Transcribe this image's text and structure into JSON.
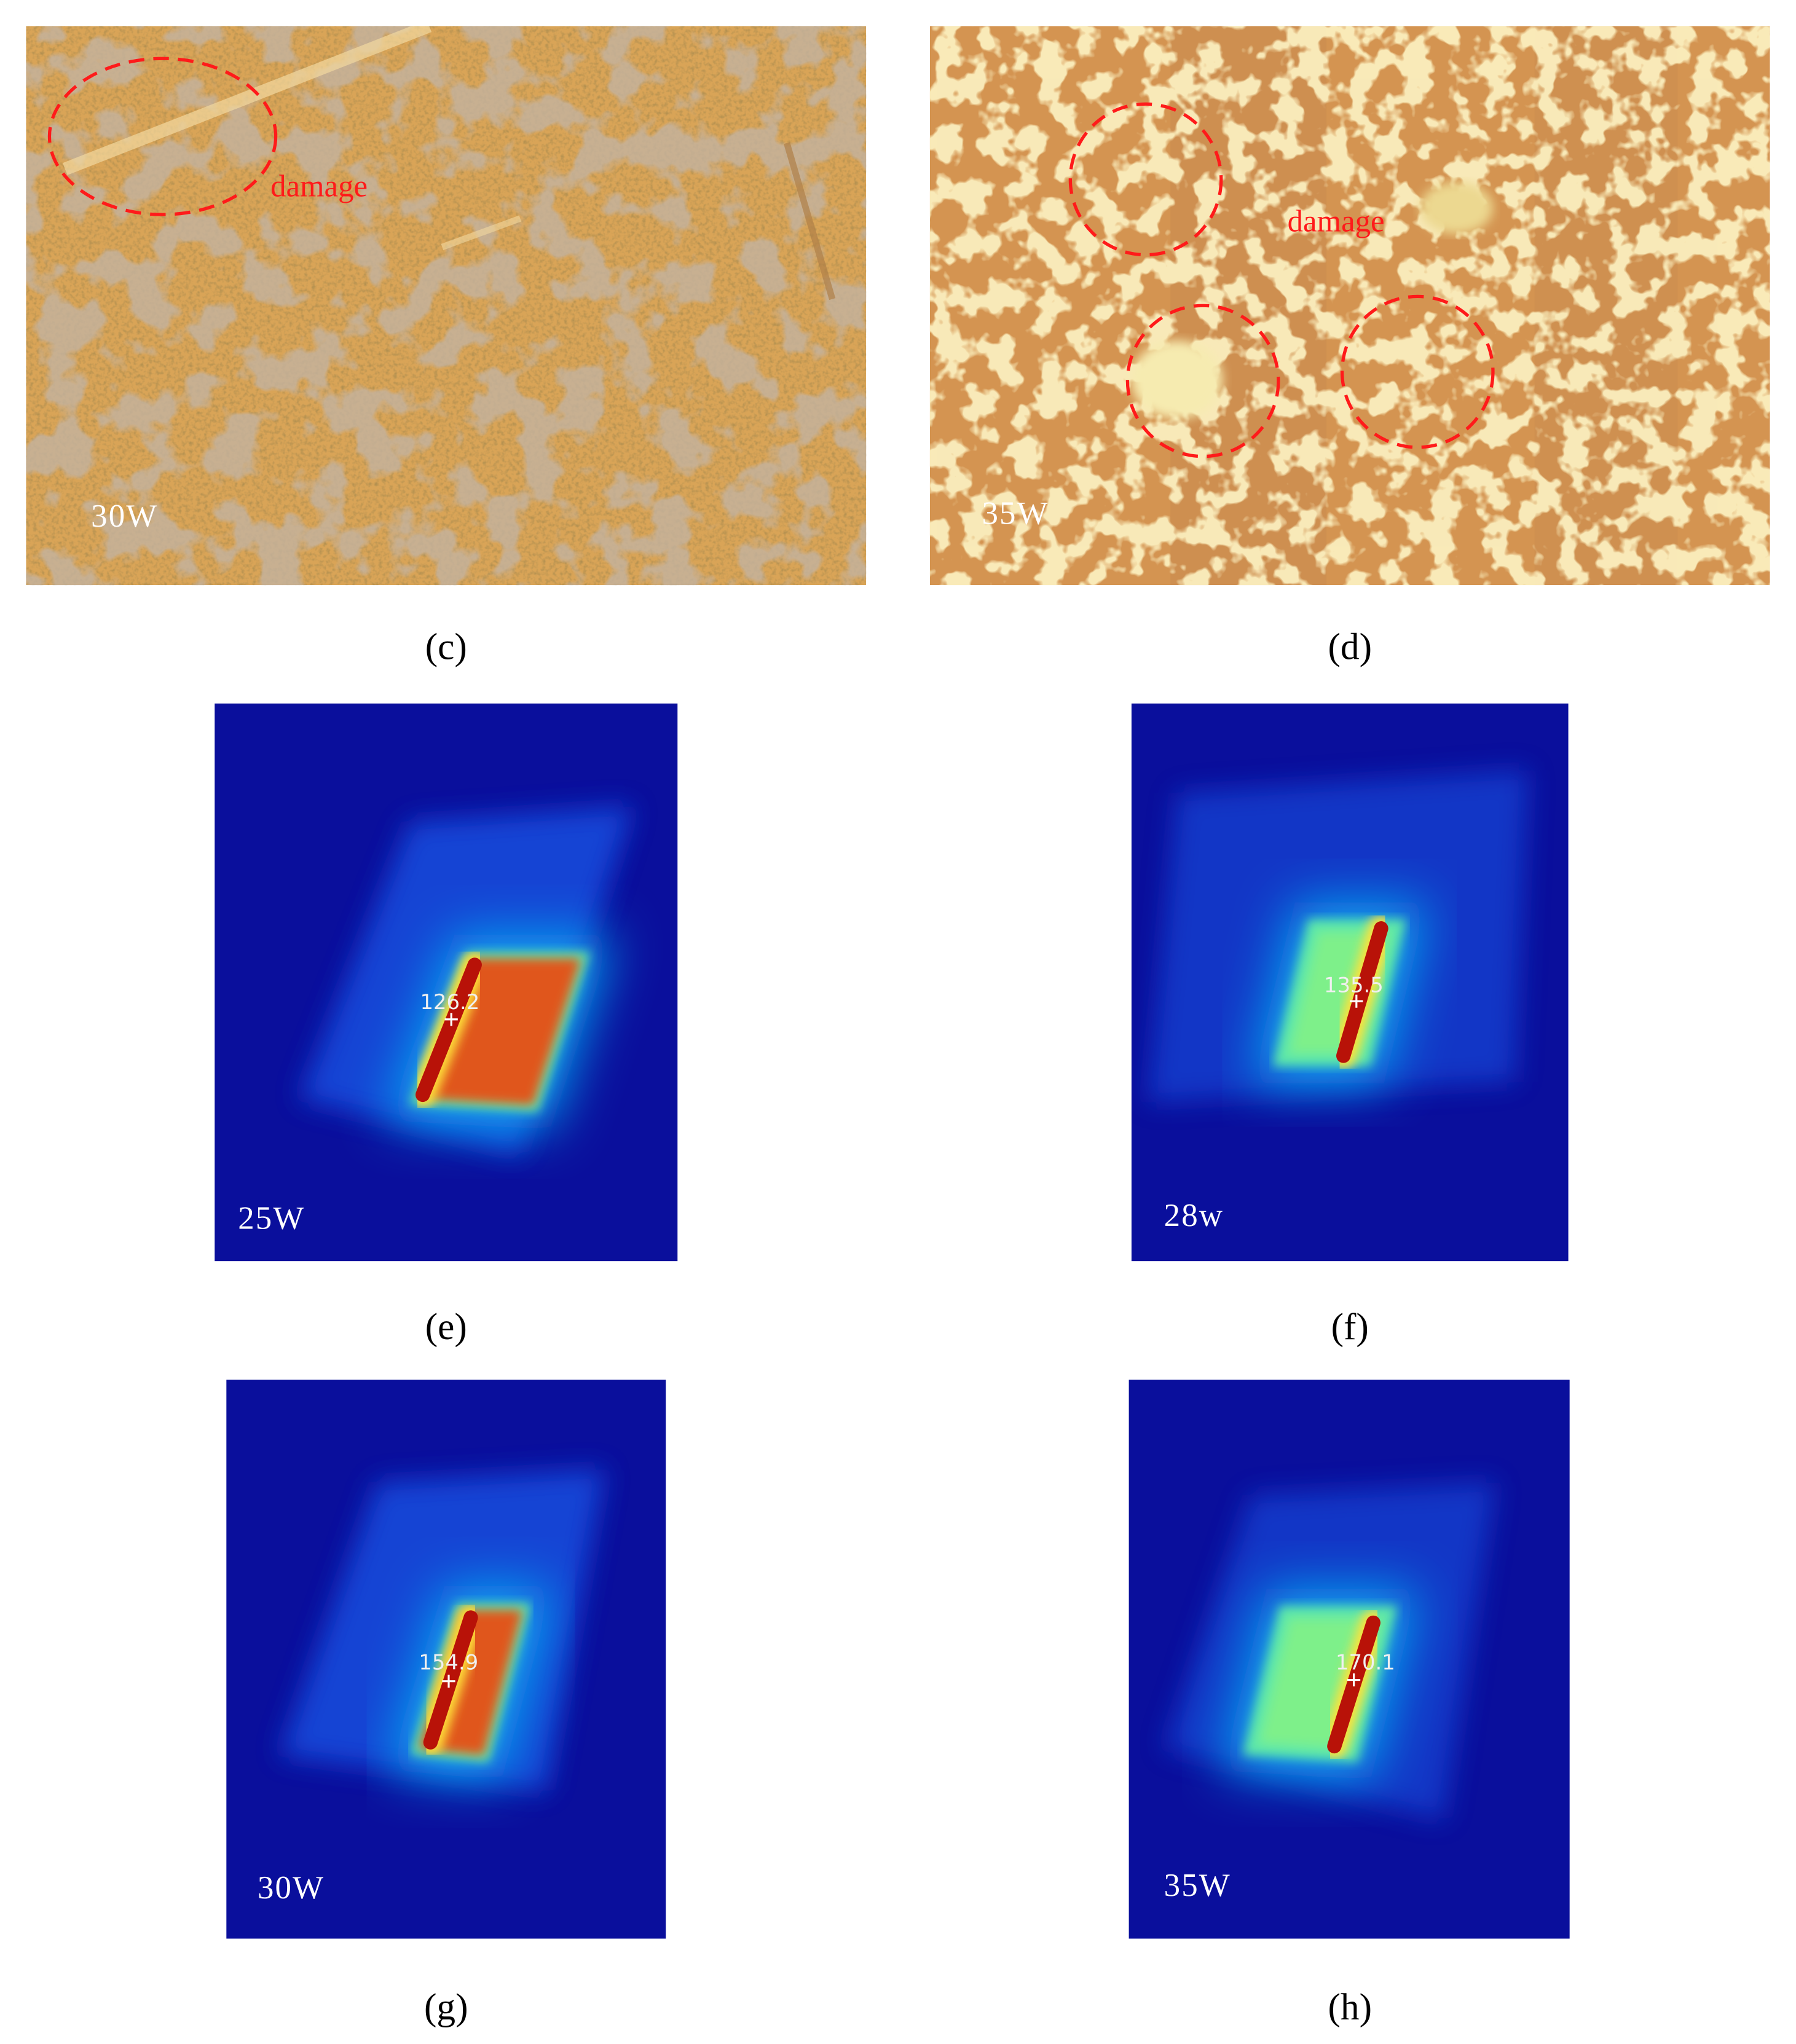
{
  "panels": [
    {
      "label": "(c)",
      "power": "30W",
      "annotation": "damage"
    },
    {
      "label": "(d)",
      "power": "35W",
      "annotation": "damage"
    },
    {
      "label": "(e)",
      "power": "25W",
      "temperature": 126.2
    },
    {
      "label": "(f)",
      "power": "28w",
      "temperature": 135.5
    },
    {
      "label": "(g)",
      "power": "30W",
      "temperature": 154.9
    },
    {
      "label": "(h)",
      "power": "35W",
      "temperature": 170.1
    }
  ]
}
